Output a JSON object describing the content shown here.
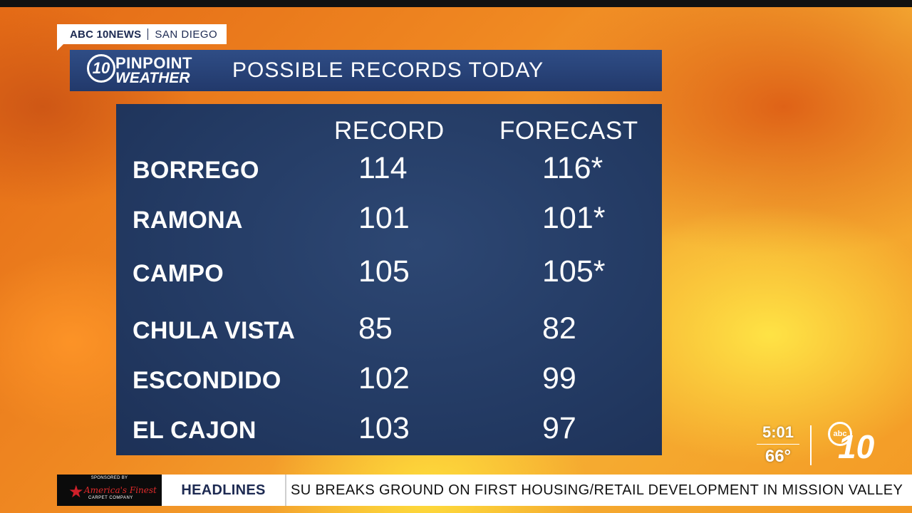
{
  "station": {
    "brand": "ABC 10NEWS",
    "city": "SAN DIEGO"
  },
  "title_bar": {
    "logo": {
      "badge": "10",
      "line1": "PINPOINT",
      "line2": "WEATHER"
    },
    "title": "POSSIBLE RECORDS TODAY"
  },
  "table": {
    "headers": {
      "record": "RECORD",
      "forecast": "FORECAST"
    },
    "rows": [
      {
        "city": "BORREGO",
        "record": "114",
        "forecast": "116*"
      },
      {
        "city": "RAMONA",
        "record": "101",
        "forecast": "101*"
      },
      {
        "city": "CAMPO",
        "record": "105",
        "forecast": "105*"
      },
      {
        "city": "CHULA VISTA",
        "record": "85",
        "forecast": "82"
      },
      {
        "city": "ESCONDIDO",
        "record": "102",
        "forecast": "99"
      },
      {
        "city": "EL CAJON",
        "record": "103",
        "forecast": "97"
      }
    ]
  },
  "clock": {
    "time": "5:01",
    "temperature": "66°"
  },
  "corner_logo": {
    "network": "abc",
    "number": "10"
  },
  "ticker": {
    "sponsor_label": "SPONSORED BY",
    "sponsor_name": "America's Finest",
    "sponsor_sub": "CARPET COMPANY",
    "label": "HEADLINES",
    "text": "SU BREAKS GROUND ON FIRST HOUSING/RETAIL DEVELOPMENT IN MISSION VALLEY"
  },
  "colors": {
    "title_bar": "#2a447a",
    "panel": "#233a63",
    "brand_navy": "#1d2a52",
    "background_orange": "#e8781a",
    "background_yellow": "#f6b034"
  }
}
